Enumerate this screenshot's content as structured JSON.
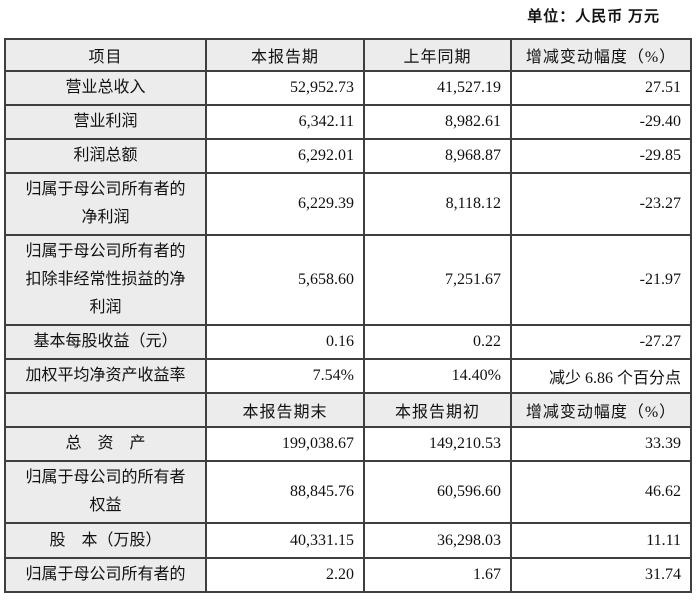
{
  "unit_label": "单位：人民币 万元",
  "table": {
    "rows": [
      {
        "kind": "header",
        "cells": [
          "项目",
          "本报告期",
          "上年同期",
          "增减变动幅度（%）"
        ]
      },
      {
        "kind": "data",
        "cells": [
          "营业总收入",
          "52,952.73",
          "41,527.19",
          "27.51"
        ]
      },
      {
        "kind": "data",
        "cells": [
          "营业利润",
          "6,342.11",
          "8,982.61",
          "-29.40"
        ]
      },
      {
        "kind": "data",
        "cells": [
          "利润总额",
          "6,292.01",
          "8,968.87",
          "-29.85"
        ]
      },
      {
        "kind": "data",
        "cells": [
          "归属于母公司所有者的\n净利润",
          "6,229.39",
          "8,118.12",
          "-23.27"
        ]
      },
      {
        "kind": "data",
        "cells": [
          "归属于母公司所有者的\n扣除非经常性损益的净\n利润",
          "5,658.60",
          "7,251.67",
          "-21.97"
        ]
      },
      {
        "kind": "data",
        "cells": [
          "基本每股收益（元）",
          "0.16",
          "0.22",
          "-27.27"
        ]
      },
      {
        "kind": "data",
        "cells": [
          "加权平均净资产收益率",
          "7.54%",
          "14.40%",
          "减少 6.86 个百分点"
        ]
      },
      {
        "kind": "header",
        "cells": [
          "",
          "本报告期末",
          "本报告期初",
          "增减变动幅度（%）"
        ]
      },
      {
        "kind": "data",
        "cells": [
          "总　资　产",
          "199,038.67",
          "149,210.53",
          "33.39"
        ]
      },
      {
        "kind": "data",
        "cells": [
          "归属于母公司的所有者\n权益",
          "88,845.76",
          "60,596.60",
          "46.62"
        ]
      },
      {
        "kind": "data",
        "cells": [
          "股　本（万股）",
          "40,331.15",
          "36,298.03",
          "11.11"
        ]
      },
      {
        "kind": "data",
        "cells": [
          "归属于母公司所有者的",
          "2.20",
          "1.67",
          "31.74"
        ]
      }
    ]
  }
}
